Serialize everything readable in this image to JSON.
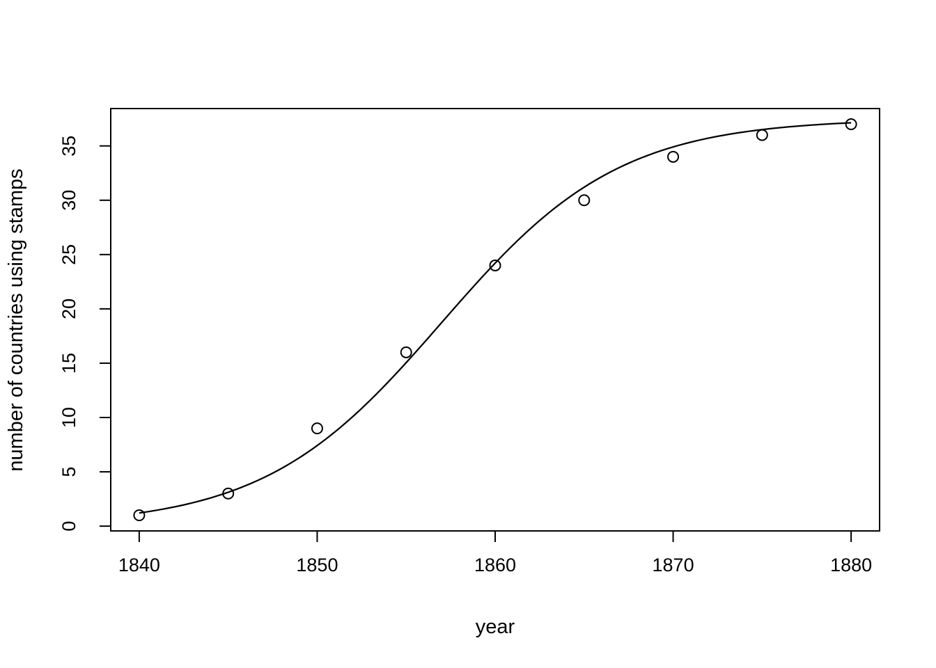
{
  "chart_data": {
    "type": "scatter",
    "title": "",
    "xlabel": "year",
    "ylabel": "number of countries using stamps",
    "x": [
      1840,
      1845,
      1850,
      1855,
      1860,
      1865,
      1870,
      1875,
      1880
    ],
    "y": [
      1,
      3,
      9,
      16,
      24,
      30,
      34,
      36,
      37
    ],
    "series_name": "countries using stamps",
    "x_ticks": [
      1840,
      1850,
      1860,
      1870,
      1880
    ],
    "y_ticks": [
      0,
      5,
      10,
      15,
      20,
      25,
      30,
      35
    ],
    "xlim": [
      1838.4,
      1881.6
    ],
    "ylim": [
      -0.44,
      38.44
    ],
    "grid": false,
    "legend": null,
    "marker": "open-circle",
    "fit_curve": {
      "model": "logistic",
      "K": 37.5,
      "r": 0.2,
      "t0": 1857,
      "x_start": 1840,
      "x_end": 1880
    },
    "colors": {
      "points": "#000000",
      "line": "#000000",
      "axis": "#000000",
      "background": "#ffffff"
    }
  }
}
